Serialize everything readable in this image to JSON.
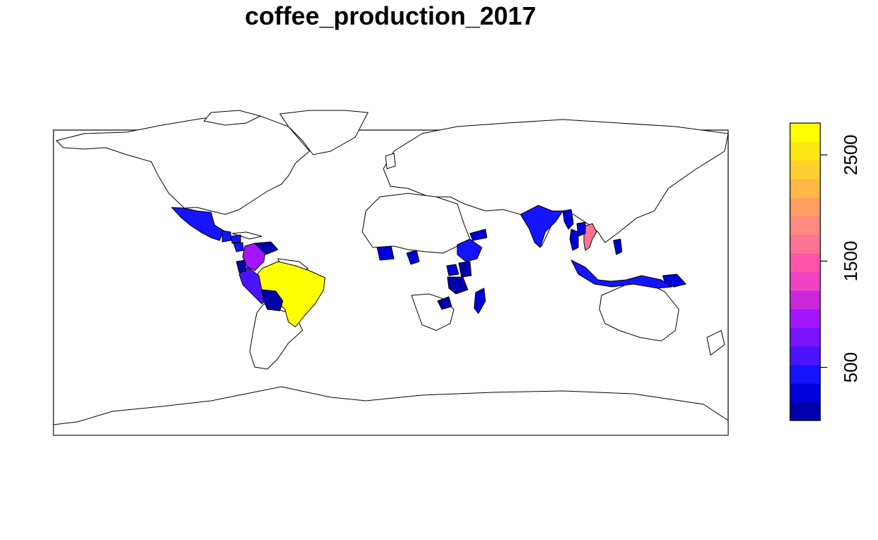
{
  "title": "coffee_production_2017",
  "no_data_color": "#ffffff",
  "border_color": "#000000",
  "legend": {
    "type": "continuous color bar",
    "range": [
      0,
      2800
    ],
    "ticks": [
      {
        "value": 500,
        "label": "500"
      },
      {
        "value": 1500,
        "label": "1500"
      },
      {
        "value": 2500,
        "label": "2500"
      }
    ],
    "palette": [
      "#0000aa",
      "#0000dd",
      "#1414ff",
      "#4b14ff",
      "#7a14ff",
      "#a314ff",
      "#c828d8",
      "#f044c4",
      "#ff54aa",
      "#ff7494",
      "#ff8a80",
      "#ff9e60",
      "#ffb848",
      "#ffd030",
      "#ffe614",
      "#ffff00"
    ]
  },
  "chart_data": {
    "type": "choropleth",
    "variable": "coffee_production_2017",
    "regions": [
      {
        "country": "Brazil",
        "value": 2680,
        "color": "#ffff00"
      },
      {
        "country": "Vietnam",
        "value": 1650,
        "color": "#ff7494"
      },
      {
        "country": "Colombia",
        "value": 1000,
        "color": "#a314ff"
      },
      {
        "country": "Peru",
        "value": 650,
        "color": "#4b14ff"
      },
      {
        "country": "Mexico",
        "value": 520,
        "color": "#1414ff"
      },
      {
        "country": "India",
        "value": 500,
        "color": "#1414ff"
      },
      {
        "country": "Indonesia",
        "value": 500,
        "color": "#1414ff"
      },
      {
        "country": "Ethiopia",
        "value": 480,
        "color": "#1414ff"
      },
      {
        "country": "Guatemala",
        "value": 330,
        "color": "#1414ff"
      },
      {
        "country": "Honduras",
        "value": 300,
        "color": "#1414ff"
      },
      {
        "country": "Uganda",
        "value": 280,
        "color": "#0000dd"
      },
      {
        "country": "Nicaragua",
        "value": 220,
        "color": "#1414ff"
      },
      {
        "country": "Cote d'Ivoire",
        "value": 150,
        "color": "#0000dd"
      },
      {
        "country": "Papua New Guinea",
        "value": 120,
        "color": "#0000dd"
      },
      {
        "country": "Laos",
        "value": 100,
        "color": "#0000dd"
      },
      {
        "country": "Thailand",
        "value": 60,
        "color": "#0000dd"
      },
      {
        "country": "Tanzania",
        "value": 60,
        "color": "#0000aa"
      },
      {
        "country": "Kenya",
        "value": 50,
        "color": "#0000aa"
      },
      {
        "country": "Madagascar",
        "value": 40,
        "color": "#0000dd"
      },
      {
        "country": "Venezuela",
        "value": 40,
        "color": "#0000aa"
      },
      {
        "country": "Bolivia",
        "value": 20,
        "color": "#0000aa"
      },
      {
        "country": "Ecuador",
        "value": 40,
        "color": "#0000aa"
      },
      {
        "country": "Cameroon",
        "value": 40,
        "color": "#0000dd"
      },
      {
        "country": "Yemen",
        "value": 20,
        "color": "#0000dd"
      },
      {
        "country": "Zambia/Malawi",
        "value": 10,
        "color": "#0000aa"
      },
      {
        "country": "Myanmar",
        "value": 10,
        "color": "#0000dd"
      },
      {
        "country": "Philippines",
        "value": 10,
        "color": "#0000dd"
      }
    ]
  }
}
